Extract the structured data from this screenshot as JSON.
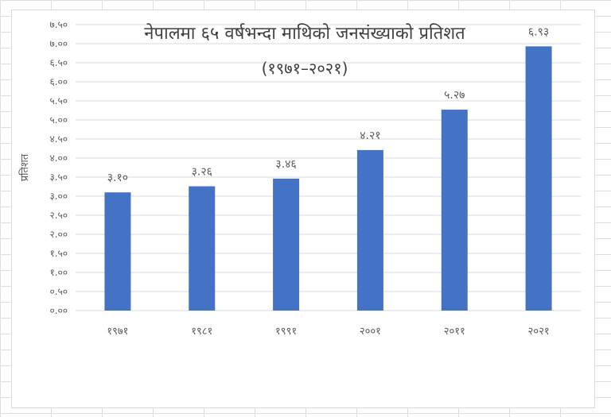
{
  "chart_data": {
    "type": "bar",
    "title": "नेपालमा ६५ वर्षभन्दा माथिको जनसंख्याको प्रतिशत",
    "subtitle": "(१९७१–२०२१)",
    "xlabel": "",
    "ylabel": "प्रतिशत",
    "categories": [
      "१९७१",
      "१९८१",
      "१९९१",
      "२००१",
      "२०११",
      "२०२१"
    ],
    "values": [
      3.1,
      3.26,
      3.46,
      4.21,
      5.27,
      6.93
    ],
    "data_labels": [
      "३.१०",
      "३.२६",
      "३.४६",
      "४.२१",
      "५.२७",
      "६.९३"
    ],
    "ylim": [
      0,
      7.5
    ],
    "y_ticks": [
      0,
      0.5,
      1,
      1.5,
      2,
      2.5,
      3,
      3.5,
      4,
      4.5,
      5,
      5.5,
      6,
      6.5,
      7,
      7.5
    ],
    "y_tick_labels": [
      "०.००",
      "०.५०",
      "१.००",
      "१.५०",
      "२.००",
      "२.५०",
      "३.००",
      "३.५०",
      "४.००",
      "४.५०",
      "५.००",
      "५.५०",
      "६.००",
      "६.५०",
      "७.००",
      "७.५०"
    ],
    "grid": true,
    "legend": "none",
    "colors": {
      "bar": "#4472c4",
      "grid": "#d9d9d9",
      "text": "#595959",
      "title": "#404040"
    }
  }
}
